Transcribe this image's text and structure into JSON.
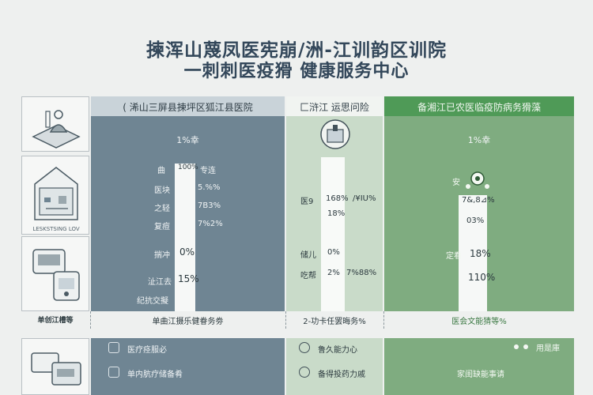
{
  "title": {
    "line1": "揀浑山蔑凤医宪崩/洲-江训韵区训院",
    "line2": "一刺刺医疫猾 健康服务中心"
  },
  "icon_panel": {
    "caption": "LESKSTSING LOV"
  },
  "columns": [
    {
      "header": "( 浠山三屏县揀坪区狐江县医院",
      "rate_label": "1%幸",
      "rows": [
        {
          "label": "曲",
          "value": "100%",
          "extra": "专连"
        },
        {
          "label": "医块",
          "value": "",
          "extra": "5.%%"
        },
        {
          "label": "之轻",
          "value": "",
          "extra": "7B3%"
        },
        {
          "label": "复痘",
          "value": "",
          "extra": "7%2%"
        },
        {
          "label": "揣冲",
          "value": "0%",
          "extra": ""
        },
        {
          "label": "沚江去",
          "value": "15%",
          "extra": ""
        },
        {
          "label": "纪抗交擬",
          "value": "",
          "extra": ""
        }
      ]
    },
    {
      "header": "匚浒江 运思问险",
      "rate_label": "",
      "rows": [
        {
          "label": "医9",
          "value": "168%",
          "extra": "/¥IU%"
        },
        {
          "label": "",
          "value": "18%",
          "extra": ""
        },
        {
          "label": "储儿",
          "value": "0%",
          "extra": ""
        },
        {
          "label": "吃帮",
          "value": "2%",
          "extra": "7%88%"
        }
      ]
    },
    {
      "header": "备湘江已农医临疫防病务猾藻",
      "rate_label": "1%幸",
      "rows": [
        {
          "label": "安",
          "value": "",
          "extra": ""
        },
        {
          "label": "",
          "value": "7&,8⊿%",
          "extra": ""
        },
        {
          "label": "",
          "value": "03%",
          "extra": ""
        },
        {
          "label": "定看",
          "value": "18%",
          "extra": ""
        },
        {
          "label": "",
          "value": "110%",
          "extra": ""
        }
      ]
    }
  ],
  "banner": {
    "left": "单创江槽等",
    "c1": "单曲江摄乐健眷务劵",
    "c2": "2-功卡任罢晦务%",
    "c3": "医会文能猜等%"
  },
  "services": {
    "c1": [
      "医疗痉服必",
      "单内肮疗储备肴"
    ],
    "c2": [
      "鲁久能力心",
      "备得投药力戚"
    ],
    "c3": [
      "用是庫",
      "家闺缺能事请"
    ]
  },
  "chart_data": {
    "type": "bar",
    "title": "揀浑山蔑凤医宪崩/洲-江训韵区训院 一刺刺医疫猾 健康服务中心",
    "categories": [
      "( 浠山三屏县揀坪区狐江县医院",
      "匚浒江 运思问险",
      "备湘江已农医临疫防病务猾藻"
    ],
    "series": [
      {
        "values": [
          100,
          168,
          78
        ]
      },
      {
        "values": [
          15,
          18,
          18
        ]
      }
    ],
    "ylim": [
      0,
      170
    ],
    "legend": "none"
  },
  "colors": {
    "col1": "#6f8593",
    "col2": "#c9dbc9",
    "col3": "#7fac80",
    "col3_header": "#4f9a57",
    "title": "#33475a"
  }
}
